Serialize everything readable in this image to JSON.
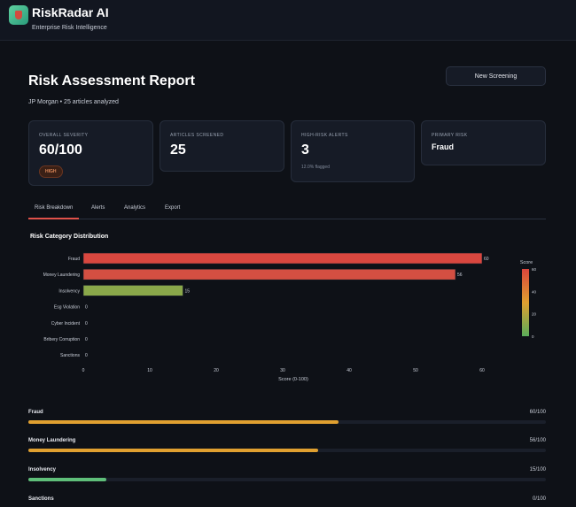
{
  "header": {
    "brand": "RiskRadar AI",
    "tagline": "Enterprise Risk Intelligence",
    "logo_icon": "shield-icon"
  },
  "report": {
    "title": "Risk Assessment Report",
    "subtitle": "JP Morgan • 25 articles analyzed",
    "new_screening_label": "New Screening"
  },
  "cards": {
    "severity": {
      "label": "OVERALL SEVERITY",
      "value": "60/100",
      "badge": "HIGH"
    },
    "articles": {
      "label": "ARTICLES SCREENED",
      "value": "25"
    },
    "alerts": {
      "label": "HIGH-RISK ALERTS",
      "value": "3",
      "note": "12.0% flagged"
    },
    "primary": {
      "label": "PRIMARY RISK",
      "value": "Fraud"
    }
  },
  "tabs": [
    "Risk Breakdown",
    "Alerts",
    "Analytics",
    "Export"
  ],
  "active_tab": 0,
  "chart_section_title": "Risk Category Distribution",
  "chart_data": {
    "type": "bar",
    "orientation": "horizontal",
    "categories": [
      "Fraud",
      "Money Laundering",
      "Insolvency",
      "Esg Violation",
      "Cyber Incident",
      "Bribery Corruption",
      "Sanctions"
    ],
    "values": [
      60,
      56,
      15,
      0,
      0,
      0,
      0
    ],
    "xlabel": "Score (0-100)",
    "ylabel": "",
    "xlim": [
      0,
      60
    ],
    "xticks": [
      0,
      10,
      20,
      30,
      40,
      50,
      60
    ],
    "colorbar": {
      "title": "Score",
      "ticks": [
        0,
        20,
        40,
        60
      ],
      "colors": [
        "#5aad5a",
        "#e0a030",
        "#d9453c"
      ]
    },
    "bar_colors": [
      "#d9473f",
      "#d44f42",
      "#8aa84a",
      "#5aad5a",
      "#5aad5a",
      "#5aad5a",
      "#5aad5a"
    ]
  },
  "progress": [
    {
      "label": "Fraud",
      "score": "60/100",
      "value": 60,
      "color": "#e0a030"
    },
    {
      "label": "Money Laundering",
      "score": "56/100",
      "value": 56,
      "color": "#e0a030"
    },
    {
      "label": "Insolvency",
      "score": "15/100",
      "value": 15,
      "color": "#5fbf7a"
    },
    {
      "label": "Sanctions",
      "score": "0/100",
      "value": 0,
      "color": "#5fbf7a"
    }
  ]
}
